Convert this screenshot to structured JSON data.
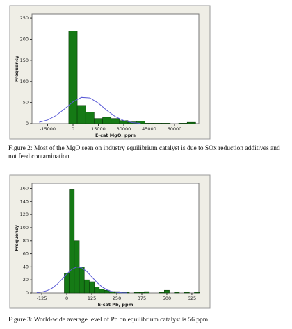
{
  "chart_data": [
    {
      "type": "histogram",
      "xlabel": "E-cat MgO, ppm",
      "ylabel": "Frequency",
      "bins": [
        -2500,
        2500,
        7500,
        12500,
        17500,
        22500,
        27500,
        32500,
        37500,
        42500,
        47500,
        52500,
        57500,
        62500,
        67500,
        72500
      ],
      "counts": [
        220,
        43,
        27,
        12,
        15,
        12,
        7,
        4,
        6,
        1,
        1,
        1,
        0,
        1,
        3
      ],
      "color": "#157a15",
      "curve": {
        "color": "#5a5ad6",
        "x": [
          -20000,
          -15000,
          -10000,
          -5000,
          0,
          5000,
          10000,
          15000,
          20000,
          25000,
          30000,
          35000,
          40000
        ],
        "values": [
          3.1,
          8.5,
          19.1,
          34.8,
          51.5,
          62,
          60.7,
          48.4,
          31.3,
          16.5,
          7.1,
          2.5,
          0.7
        ]
      },
      "xlim": [
        -24250,
        74400
      ],
      "ylim": [
        0,
        260
      ],
      "xticks": [
        -15000,
        0,
        15000,
        30000,
        45000,
        60000
      ],
      "yticks": [
        0,
        50,
        100,
        150,
        200,
        250
      ]
    },
    {
      "type": "histogram",
      "xlabel": "E-cat Pb, ppm",
      "ylabel": "Frequency",
      "bins": [
        -12.5,
        12.5,
        37.5,
        62.5,
        87.5,
        112.5,
        137.5,
        162.5,
        187.5,
        212.5,
        237.5,
        262.5,
        287.5,
        312.5,
        337.5,
        362.5,
        387.5,
        412.5,
        437.5,
        462.5,
        487.5,
        512.5,
        537.5,
        562.5,
        587.5,
        612.5,
        637.5,
        662.5
      ],
      "counts": [
        30,
        158,
        80,
        40,
        20,
        17,
        9,
        6,
        4,
        2,
        2,
        1,
        1,
        0,
        1,
        1,
        2,
        0,
        0,
        1,
        4,
        0,
        1,
        0,
        1,
        0,
        1
      ],
      "color": "#157a15",
      "curve": {
        "color": "#5a5ad6",
        "x": [
          -150,
          -125,
          -100,
          -75,
          -50,
          -25,
          0,
          25,
          50,
          75,
          100,
          125,
          150,
          175,
          200,
          225,
          250,
          275,
          300
        ],
        "values": [
          0.5,
          1.4,
          3.3,
          6.9,
          12.7,
          20.5,
          29.0,
          36.3,
          39.8,
          38.5,
          32.8,
          24.6,
          16.2,
          9.4,
          4.8,
          2.2,
          0.9,
          0.3,
          0.1
        ]
      },
      "xlim": [
        -174,
        660
      ],
      "ylim": [
        0,
        168
      ],
      "xticks": [
        -125,
        0,
        125,
        250,
        375,
        500,
        625
      ],
      "yticks": [
        0,
        20,
        40,
        60,
        80,
        100,
        120,
        140,
        160
      ]
    }
  ],
  "captions": [
    "Figure 2: Most of the MgO seen on industry equilibrium catalyst is due to SOx reduction additives and not feed contamination.",
    "Figure 3: World-wide average level of Pb on equilibrium catalyst is 56 ppm."
  ]
}
